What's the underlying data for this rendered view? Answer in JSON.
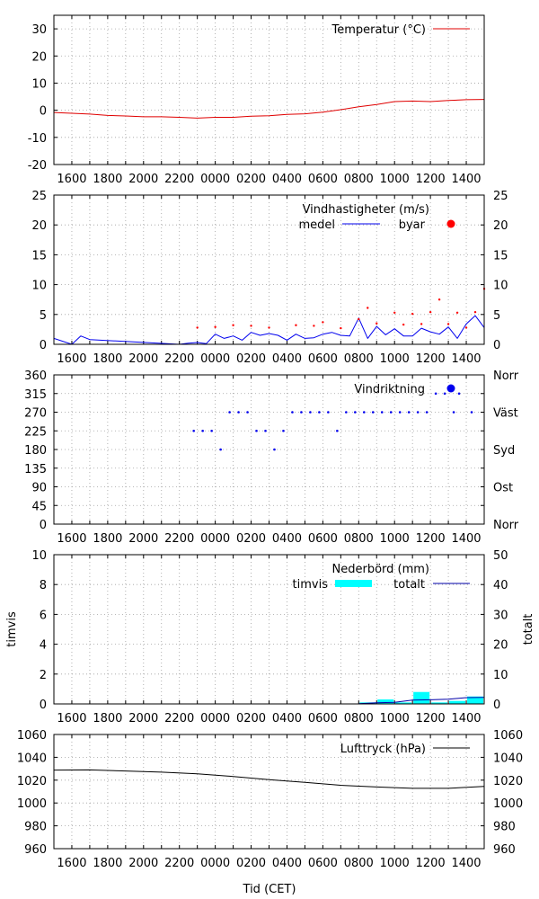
{
  "page": {
    "xlabel": "Tid (CET)",
    "x_tick_labels": [
      "1600",
      "1800",
      "2000",
      "2200",
      "0000",
      "0200",
      "0400",
      "0600",
      "0800",
      "1000",
      "1200",
      "1400"
    ]
  },
  "chart_data": [
    {
      "id": "temperatur",
      "type": "line",
      "x_unit": "hours since the 1500 gridline",
      "xlim": [
        0,
        24
      ],
      "ylim": [
        -20,
        35
      ],
      "y_ticks": [
        -20,
        -10,
        0,
        10,
        20,
        30
      ],
      "grid": true,
      "legend_position": "top-right",
      "series": [
        {
          "name": "Temperatur (°C)",
          "color": "#e00000",
          "x": [
            0,
            1,
            2,
            3,
            4,
            5,
            6,
            7,
            8,
            9,
            10,
            11,
            12,
            13,
            14,
            15,
            16,
            17,
            18,
            19,
            20,
            21,
            22,
            23,
            24
          ],
          "y": [
            -0.8,
            -1.1,
            -1.4,
            -1.9,
            -2.1,
            -2.4,
            -2.4,
            -2.6,
            -2.9,
            -2.6,
            -2.6,
            -2.2,
            -2.0,
            -1.5,
            -1.3,
            -0.7,
            0.2,
            1.3,
            2.1,
            3.2,
            3.4,
            3.2,
            3.6,
            3.9,
            4.0
          ]
        }
      ]
    },
    {
      "id": "vindhastigheter",
      "type": "line",
      "ylim": [
        0,
        25
      ],
      "y_ticks": [
        0,
        5,
        10,
        15,
        20,
        25
      ],
      "y2_ticks": [
        0,
        5,
        10,
        15,
        20,
        25
      ],
      "grid": true,
      "legend_title": "Vindhastigheter (m/s)",
      "legend_position": "top-right",
      "series": [
        {
          "name": "medel",
          "color": "#0000ee",
          "style": "line",
          "x": [
            0,
            1,
            1.5,
            2,
            7,
            7.5,
            8,
            8.5,
            9,
            9.5,
            10,
            10.5,
            11,
            11.5,
            12,
            12.5,
            13,
            13.5,
            14,
            14.5,
            15,
            15.5,
            16,
            16.5,
            17,
            17.5,
            18,
            18.5,
            19,
            19.5,
            20,
            20.5,
            21,
            21.5,
            22,
            22.5,
            23,
            23.5,
            24
          ],
          "y": [
            1,
            0,
            1.4,
            0.8,
            0,
            0.2,
            0.3,
            0.1,
            1.7,
            1.0,
            1.4,
            0.7,
            2.0,
            1.5,
            1.8,
            1.5,
            0.7,
            1.7,
            1.0,
            1.1,
            1.7,
            2.0,
            1.5,
            1.4,
            4.4,
            1.0,
            3.0,
            1.6,
            2.6,
            1.4,
            1.4,
            2.7,
            2.1,
            1.7,
            2.9,
            1.0,
            3.4,
            4.8,
            2.8
          ]
        },
        {
          "name": "byar",
          "color": "#ff0000",
          "style": "points",
          "x": [
            8,
            9,
            10,
            11,
            12,
            13.5,
            14.5,
            15,
            16,
            17,
            17.5,
            18,
            19,
            19.5,
            20,
            20.5,
            21,
            21.5,
            22,
            22.5,
            23,
            23.5,
            24
          ],
          "y": [
            2.8,
            2.9,
            3.2,
            3.1,
            2.8,
            3.2,
            3.1,
            3.7,
            2.7,
            4.2,
            6.1,
            3.5,
            5.3,
            3.3,
            5.1,
            3.4,
            5.4,
            7.5,
            3.4,
            5.3,
            2.8,
            5.4,
            9.3
          ]
        }
      ]
    },
    {
      "id": "vindriktning",
      "type": "scatter",
      "ylim": [
        0,
        360
      ],
      "y_ticks": [
        0,
        45,
        90,
        135,
        180,
        225,
        270,
        315,
        360
      ],
      "y2_tick_labels": [
        "Norr",
        "Ost",
        "Syd",
        "Väst",
        "Norr"
      ],
      "grid": true,
      "legend_position": "top-right",
      "series": [
        {
          "name": "Vindriktning",
          "color": "#0000ee",
          "x": [
            7.8,
            8.3,
            8.8,
            9.3,
            9.8,
            10.3,
            10.8,
            11.3,
            11.8,
            12.3,
            12.8,
            13.3,
            13.8,
            14.3,
            14.8,
            15.3,
            15.8,
            16.3,
            16.8,
            17.3,
            17.8,
            18.3,
            18.8,
            19.3,
            19.8,
            20.3,
            20.8,
            21.3,
            21.8,
            22.3,
            22.6,
            23.3
          ],
          "y": [
            225,
            225,
            225,
            180,
            270,
            270,
            270,
            225,
            225,
            180,
            225,
            270,
            270,
            270,
            270,
            270,
            225,
            270,
            270,
            270,
            270,
            270,
            270,
            270,
            270,
            270,
            270,
            315,
            315,
            270,
            315,
            270
          ]
        }
      ]
    },
    {
      "id": "nederbord",
      "type": "bar",
      "ylim": [
        0,
        10
      ],
      "y_ticks": [
        0,
        2,
        4,
        6,
        8,
        10
      ],
      "y2lim": [
        0,
        50
      ],
      "y2_ticks": [
        0,
        10,
        20,
        30,
        40,
        50
      ],
      "ylabel": "timvis",
      "y2label": "totalt",
      "grid": true,
      "legend_title": "Nederbörd (mm)",
      "legend_position": "top-right",
      "series": [
        {
          "name": "timvis",
          "color": "#00ffff",
          "style": "bars",
          "axis": "left",
          "x": [
            17.5,
            18.5,
            19.5,
            20.5,
            21.5,
            22.5,
            23.5
          ],
          "y": [
            0.1,
            0.3,
            0.1,
            0.8,
            0.1,
            0.2,
            0.5
          ]
        },
        {
          "name": "totalt",
          "color": "#0000aa",
          "style": "line",
          "axis": "right",
          "x": [
            17,
            18,
            19,
            20,
            21,
            22,
            23,
            24
          ],
          "y": [
            0.1,
            0.4,
            0.5,
            1.3,
            1.4,
            1.6,
            2.1,
            2.2
          ]
        }
      ]
    },
    {
      "id": "lufttryck",
      "type": "line",
      "ylim": [
        960,
        1060
      ],
      "y_ticks": [
        960,
        980,
        1000,
        1020,
        1040,
        1060
      ],
      "y2_ticks": [
        960,
        980,
        1000,
        1020,
        1040,
        1060
      ],
      "grid": true,
      "legend_position": "top-right",
      "series": [
        {
          "name": "Lufttryck (hPa)",
          "color": "#000000",
          "x": [
            0,
            2,
            4,
            6,
            8,
            10,
            12,
            14,
            16,
            18,
            20,
            22,
            24
          ],
          "y": [
            1028.8,
            1029.0,
            1028.0,
            1027.0,
            1025.5,
            1023.2,
            1020.5,
            1018.0,
            1015.5,
            1014.0,
            1012.8,
            1012.8,
            1014.6
          ]
        }
      ]
    }
  ]
}
